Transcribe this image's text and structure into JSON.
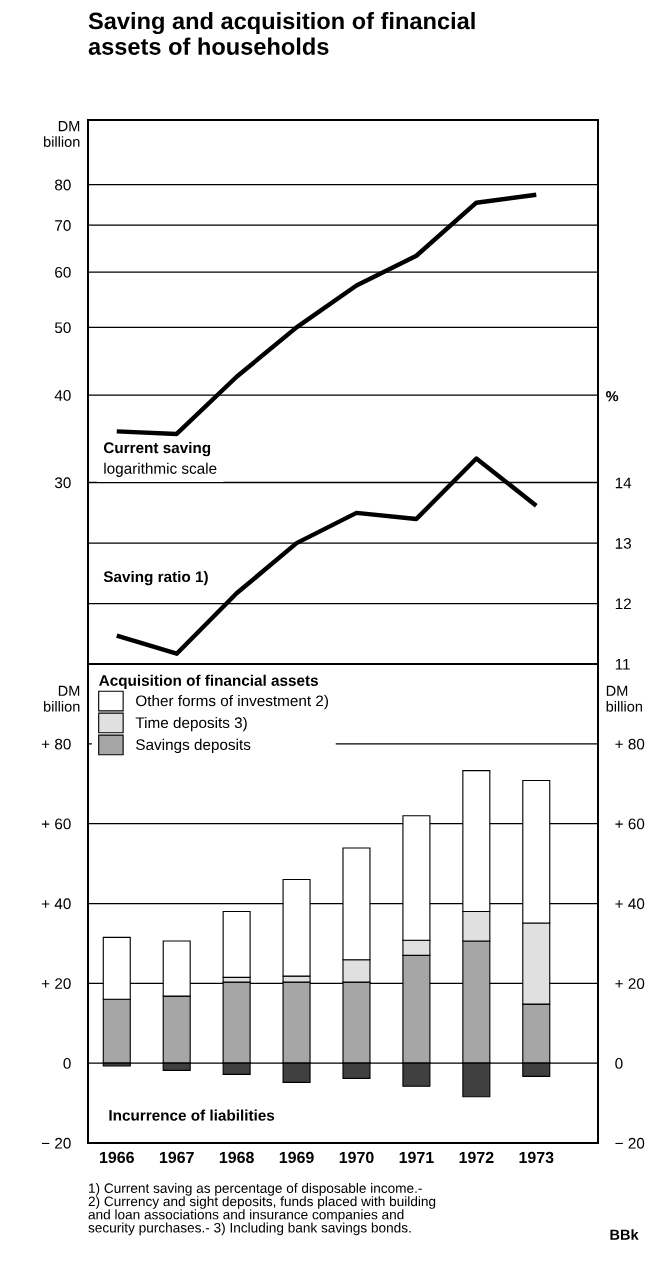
{
  "chart_data": [
    {
      "type": "line",
      "title": "Saving and acquisition of financial\nassets of households",
      "categories": [
        "1966",
        "1967",
        "1968",
        "1969",
        "1970",
        "1971",
        "1972",
        "1973"
      ],
      "ylabel": "DM billion",
      "y2label": "%",
      "log": "y",
      "ylim": [
        16.5,
        99
      ],
      "yticks": [
        30,
        40,
        50,
        60,
        70,
        80
      ],
      "y2lim": [
        11,
        20
      ],
      "y2ticks": [
        11,
        12,
        13,
        14
      ],
      "grid": "y",
      "tick_labels": "y",
      "line_style": "solid",
      "series": [
        {
          "name": "Current saving",
          "color": "#000000",
          "values": [
            35.5,
            35.2,
            42.5,
            50,
            57.4,
            63.3,
            75.4,
            77.4
          ]
        },
        {
          "name": "Saving ratio 1)",
          "color": "#000000",
          "axis": "y2",
          "values": [
            11.47,
            11.17,
            12.17,
            13.0,
            13.5,
            13.4,
            14.4,
            13.62
          ]
        }
      ],
      "annotations": [
        "logarithmic scale"
      ]
    },
    {
      "type": "bar",
      "stacked": true,
      "categories": [
        "1966",
        "1967",
        "1968",
        "1969",
        "1970",
        "1971",
        "1972",
        "1973"
      ],
      "ylabel": "DM billion",
      "y2label": "DM billion",
      "ylim": [
        -20,
        100
      ],
      "yticks": [
        {
          "value": 80,
          "label": "+ 80"
        },
        {
          "value": 60,
          "label": "+ 60"
        },
        {
          "value": 40,
          "label": "+ 40"
        },
        {
          "value": 20,
          "label": "+ 20"
        },
        0,
        {
          "value": -20,
          "label": "− 20"
        }
      ],
      "y2lim": [
        -20,
        100
      ],
      "y2ticks": [
        {
          "value": 80,
          "label": "+ 80"
        },
        {
          "value": 60,
          "label": "+ 60"
        },
        {
          "value": 40,
          "label": "+ 40"
        },
        {
          "value": 20,
          "label": "+ 20"
        },
        0,
        {
          "value": -20,
          "label": "− 20"
        }
      ],
      "grid": "y",
      "legend": "top left",
      "legend_title": "Acquisition of financial assets",
      "series": [
        {
          "name": "Savings deposits",
          "color": "#a6a6a6",
          "values": [
            16,
            16.8,
            20.3,
            20.3,
            20.3,
            27,
            30.6,
            14.8
          ]
        },
        {
          "name": "Time deposits 3)",
          "color": "#e0e0e0",
          "values": [
            null,
            null,
            1.2,
            1.5,
            5.6,
            3.8,
            7.4,
            20.3
          ]
        },
        {
          "name": "Other forms of investment 2)",
          "color": "#ffffff",
          "values": [
            15.5,
            13.8,
            16.5,
            24.2,
            28,
            31.2,
            35.3,
            35.7
          ]
        },
        {
          "color": "#404040",
          "values": [
            -0.7,
            -1.8,
            -2.8,
            -4.8,
            -3.8,
            -5.8,
            -8.4,
            -3.3
          ]
        }
      ],
      "annotations": [
        "Incurrence of liabilities",
        "1) Current saving as percentage of disposable income.-\n2) Currency and sight deposits, funds placed with building\nand loan associations and insurance companies and\nsecurity purchases.- 3) Including bank savings bonds.",
        "BBk"
      ]
    }
  ]
}
